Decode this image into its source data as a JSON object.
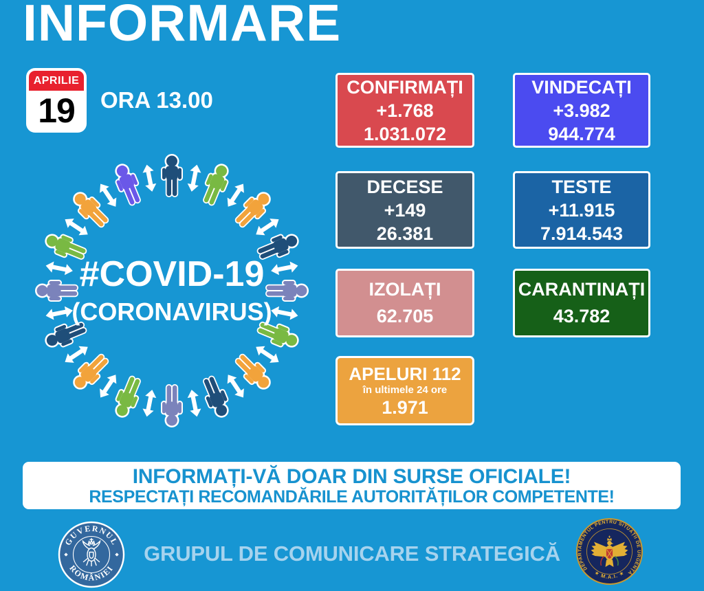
{
  "header": {
    "title": "INFORMARE",
    "calendar": {
      "month": "APRILIE",
      "day": "19"
    },
    "time": "ORA 13.00"
  },
  "stats": {
    "confirmati": {
      "label": "CONFIRMAȚI",
      "delta": "+1.768",
      "total": "1.031.072",
      "color": "#D9494F"
    },
    "vindecati": {
      "label": "VINDECAȚI",
      "delta": "+3.982",
      "total": "944.774",
      "color": "#4B4BF0"
    },
    "decese": {
      "label": "DECESE",
      "delta": "+149",
      "total": "26.381",
      "color": "#41586B"
    },
    "teste": {
      "label": "TESTE",
      "delta": "+11.915",
      "total": "7.914.543",
      "color": "#1B64A5"
    },
    "izolati": {
      "label": "IZOLAȚI",
      "total": "62.705",
      "color": "#D28F90"
    },
    "carantinati": {
      "label": "CARANTINAȚI",
      "total": "43.782",
      "color": "#166018"
    },
    "apeluri": {
      "label": "APELURI 112",
      "sublabel": "în ultimele 24 ore",
      "total": "1.971",
      "color": "#ECA33F"
    }
  },
  "diagram": {
    "hashtag": "#COVID-19",
    "subtitle": "(CORONAVIRUS)",
    "person_colors": [
      "#1F4E79",
      "#79B943",
      "#F2A33B",
      "#1F4E79",
      "#7B83BB",
      "#79B943",
      "#F2A33B",
      "#1F4E79",
      "#7B83BB",
      "#79B943",
      "#F2A33B",
      "#1F4E79",
      "#7B83BB",
      "#79B943",
      "#F2A33B",
      "#6A58E8"
    ],
    "arrow_color": "#FFFFFF"
  },
  "banner": {
    "line1": "INFORMAȚI-VĂ DOAR DIN SURSE OFICIALE!",
    "line2": "RESPECTAȚI RECOMANDĂRILE AUTORITĂȚILOR COMPETENTE!"
  },
  "footer": {
    "title": "GRUPUL DE COMUNICARE STRATEGICĂ",
    "gov_logo": {
      "top_text": "GUVERNUL",
      "bottom_text": "ROMÂNIEI"
    },
    "dsu_logo": {
      "ring_text": "DEPARTAMENTUL PENTRU SITUAȚII DE URGENȚĂ",
      "bottom_text": "★  M.A.I.  ★"
    }
  }
}
